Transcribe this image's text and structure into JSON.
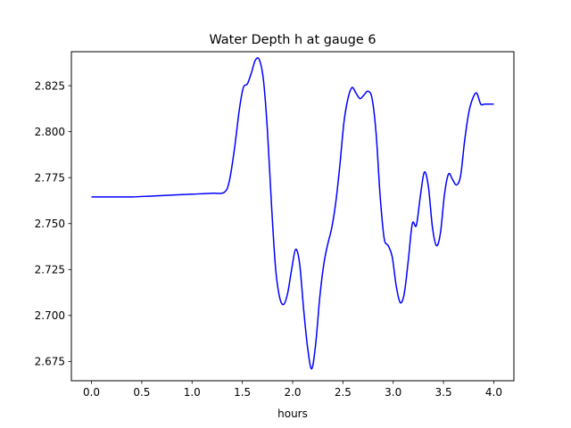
{
  "chart_data": {
    "type": "line",
    "title": "Water Depth h at gauge 6",
    "xlabel": "hours",
    "ylabel": "",
    "xlim": [
      -0.2,
      4.2
    ],
    "ylim": [
      2.6645,
      2.8435
    ],
    "grid": false,
    "x_ticks": [
      0.0,
      0.5,
      1.0,
      1.5,
      2.0,
      2.5,
      3.0,
      3.5,
      4.0
    ],
    "x_tick_labels": [
      "0.0",
      "0.5",
      "1.0",
      "1.5",
      "2.0",
      "2.5",
      "3.0",
      "3.5",
      "4.0"
    ],
    "y_ticks": [
      2.675,
      2.7,
      2.725,
      2.75,
      2.775,
      2.8,
      2.825
    ],
    "y_tick_labels": [
      "2.675",
      "2.700",
      "2.725",
      "2.750",
      "2.775",
      "2.800",
      "2.825"
    ],
    "series": [
      {
        "color": "#0000ff",
        "x": [
          0.0,
          0.2,
          0.4,
          0.6,
          0.8,
          1.0,
          1.2,
          1.32,
          1.37,
          1.42,
          1.47,
          1.51,
          1.55,
          1.59,
          1.63,
          1.67,
          1.71,
          1.75,
          1.79,
          1.83,
          1.87,
          1.91,
          1.95,
          1.99,
          2.03,
          2.07,
          2.11,
          2.15,
          2.19,
          2.23,
          2.27,
          2.31,
          2.35,
          2.39,
          2.43,
          2.47,
          2.51,
          2.55,
          2.59,
          2.63,
          2.67,
          2.71,
          2.75,
          2.79,
          2.83,
          2.87,
          2.91,
          2.95,
          2.99,
          3.03,
          3.07,
          3.11,
          3.15,
          3.19,
          3.23,
          3.27,
          3.31,
          3.35,
          3.39,
          3.43,
          3.47,
          3.51,
          3.55,
          3.59,
          3.63,
          3.67,
          3.71,
          3.75,
          3.79,
          3.83,
          3.87,
          3.91,
          3.95,
          3.98,
          4.0
        ],
        "y": [
          2.7645,
          2.7645,
          2.7645,
          2.765,
          2.7655,
          2.766,
          2.7665,
          2.767,
          2.773,
          2.79,
          2.812,
          2.824,
          2.826,
          2.832,
          2.839,
          2.839,
          2.828,
          2.8,
          2.76,
          2.726,
          2.71,
          2.706,
          2.712,
          2.725,
          2.736,
          2.728,
          2.703,
          2.682,
          2.671,
          2.685,
          2.71,
          2.728,
          2.739,
          2.748,
          2.762,
          2.782,
          2.805,
          2.818,
          2.824,
          2.821,
          2.818,
          2.82,
          2.822,
          2.818,
          2.799,
          2.765,
          2.742,
          2.738,
          2.732,
          2.716,
          2.707,
          2.712,
          2.73,
          2.75,
          2.749,
          2.765,
          2.778,
          2.77,
          2.748,
          2.738,
          2.745,
          2.766,
          2.777,
          2.774,
          2.771,
          2.776,
          2.795,
          2.81,
          2.818,
          2.821,
          2.815,
          2.815,
          2.815,
          2.815,
          2.815
        ]
      }
    ]
  }
}
